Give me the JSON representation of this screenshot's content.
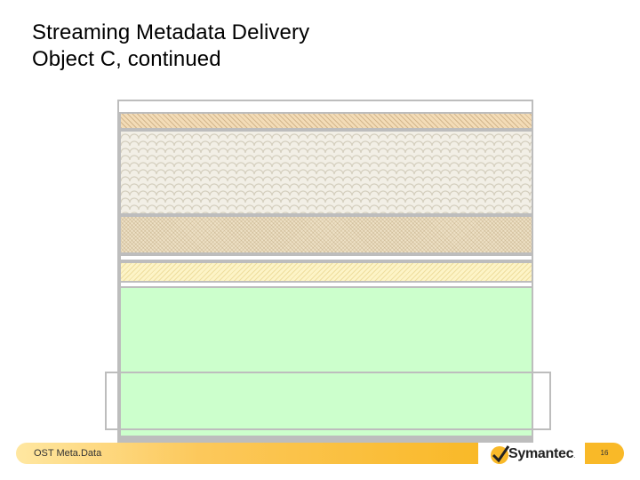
{
  "title": {
    "line1": "Streaming Metadata Delivery",
    "line2": "Object C, continued"
  },
  "footer": {
    "label": "OST Meta.Data",
    "brand": "Symantec",
    "brand_mark": ".",
    "page_number": "16"
  },
  "colors": {
    "accent": "#f9b928",
    "green_region": "#ccffcc",
    "border": "#bdbdbd"
  },
  "icons": {
    "logo": "symantec-checkmark-logo"
  }
}
